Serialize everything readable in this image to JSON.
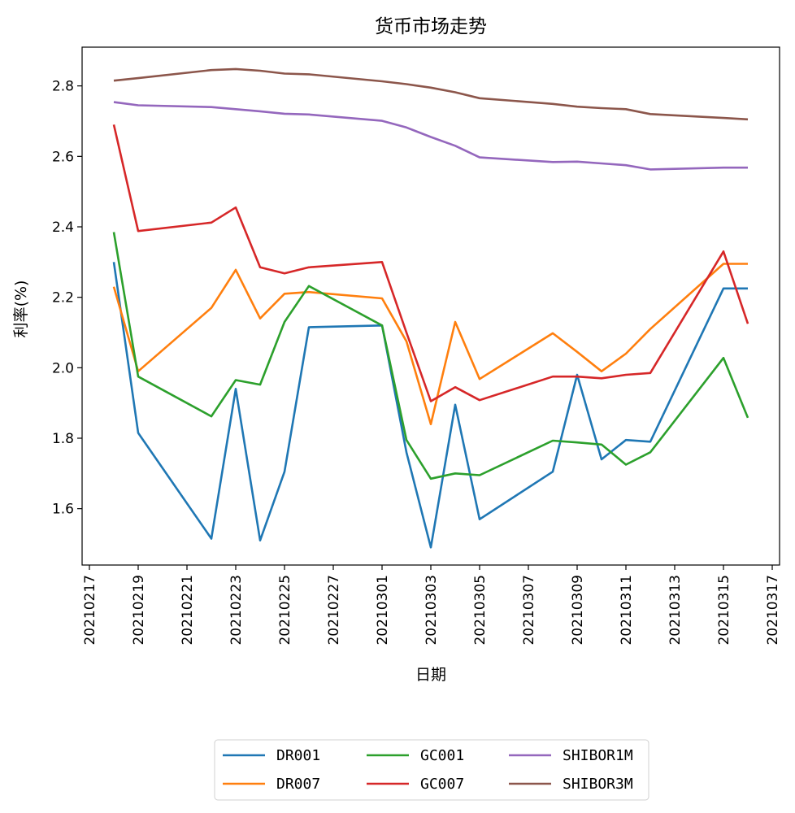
{
  "chart_data": {
    "type": "line",
    "title": "货币市场走势",
    "xlabel": "日期",
    "ylabel": "利率(%)",
    "x": [
      "20210218",
      "20210219",
      "20210222",
      "20210223",
      "20210224",
      "20210225",
      "20210226",
      "20210301",
      "20210302",
      "20210303",
      "20210304",
      "20210305",
      "20210308",
      "20210309",
      "20210310",
      "20210311",
      "20210312",
      "20210315",
      "20210316"
    ],
    "x_day_index": [
      1,
      2,
      5,
      6,
      7,
      8,
      9,
      12,
      13,
      14,
      15,
      16,
      19,
      20,
      21,
      22,
      23,
      26,
      27
    ],
    "xtick_labels": [
      "20210217",
      "20210219",
      "20210221",
      "20210223",
      "20210225",
      "20210227",
      "20210301",
      "20210303",
      "20210305",
      "20210307",
      "20210309",
      "20210311",
      "20210313",
      "20210315",
      "20210317"
    ],
    "xtick_day_index": [
      0,
      2,
      4,
      6,
      8,
      10,
      12,
      14,
      16,
      18,
      20,
      22,
      24,
      26,
      28
    ],
    "xlim_day_index": [
      -0.3,
      28.3
    ],
    "yticks": [
      1.6,
      1.8,
      2.0,
      2.2,
      2.4,
      2.6,
      2.8
    ],
    "ytick_labels": [
      "1.6",
      "1.8",
      "2.0",
      "2.2",
      "2.4",
      "2.6",
      "2.8"
    ],
    "ylim": [
      1.44,
      2.91
    ],
    "series": [
      {
        "name": "DR001",
        "color": "#1f77b4",
        "values": [
          2.3,
          1.815,
          1.515,
          1.94,
          1.51,
          1.705,
          2.115,
          2.12,
          1.76,
          1.49,
          1.895,
          1.57,
          1.705,
          1.98,
          1.74,
          1.795,
          1.79,
          2.225,
          2.225
        ]
      },
      {
        "name": "DR007",
        "color": "#ff7f0e",
        "values": [
          2.23,
          1.99,
          2.17,
          2.278,
          2.14,
          2.21,
          2.215,
          2.197,
          2.075,
          1.84,
          2.13,
          1.968,
          2.098,
          2.045,
          1.99,
          2.04,
          2.11,
          2.295,
          2.295
        ]
      },
      {
        "name": "GC001",
        "color": "#2ca02c",
        "values": [
          2.385,
          1.975,
          1.862,
          1.965,
          1.952,
          2.13,
          2.232,
          2.12,
          1.795,
          1.685,
          1.7,
          1.695,
          1.793,
          1.788,
          1.782,
          1.725,
          1.76,
          2.028,
          1.858
        ]
      },
      {
        "name": "GC007",
        "color": "#d62728",
        "values": [
          2.69,
          2.388,
          2.412,
          2.455,
          2.285,
          2.268,
          2.285,
          2.3,
          2.1,
          1.905,
          1.945,
          1.908,
          1.975,
          1.975,
          1.97,
          1.98,
          1.985,
          2.33,
          2.125
        ]
      },
      {
        "name": "SHIBOR1M",
        "color": "#9467bd",
        "values": [
          2.754,
          2.745,
          2.74,
          2.734,
          2.728,
          2.721,
          2.719,
          2.701,
          2.682,
          2.655,
          2.63,
          2.597,
          2.584,
          2.585,
          2.58,
          2.575,
          2.563,
          2.568,
          2.568
        ]
      },
      {
        "name": "SHIBOR3M",
        "color": "#8c564b",
        "values": [
          2.815,
          2.822,
          2.845,
          2.848,
          2.843,
          2.835,
          2.833,
          2.813,
          2.805,
          2.795,
          2.782,
          2.765,
          2.749,
          2.741,
          2.737,
          2.734,
          2.72,
          2.709,
          2.705
        ]
      }
    ],
    "legend_position": "bottom-center",
    "legend_columns": 3
  }
}
